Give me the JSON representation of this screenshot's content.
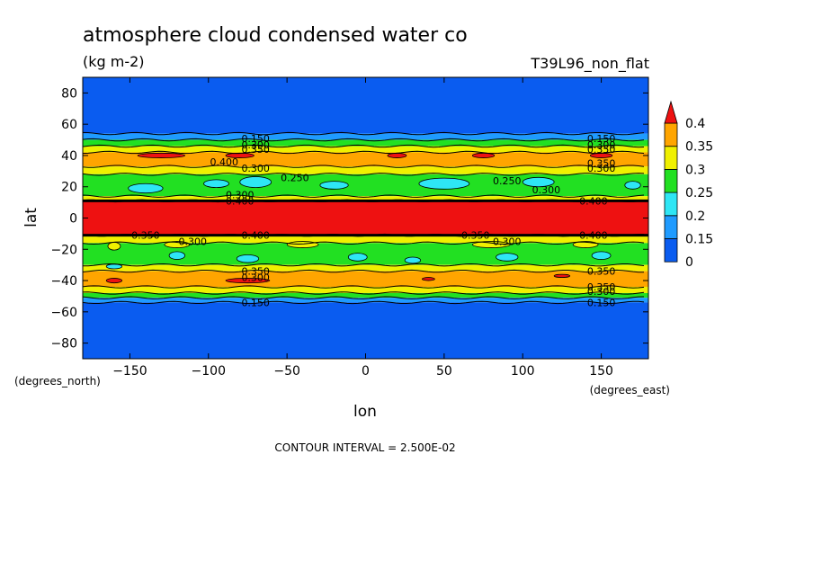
{
  "chart_data": {
    "type": "heatmap",
    "title": "atmosphere cloud condensed water co",
    "units": "(kg m-2)",
    "run_label": "T39L96_non_flat",
    "xlabel": "lon",
    "ylabel": "lat",
    "x_units": "(degrees_east)",
    "y_units": "(degrees_north)",
    "xlim": [
      -180,
      180
    ],
    "ylim": [
      -90,
      90
    ],
    "x_ticks": [
      -150,
      -100,
      -50,
      0,
      50,
      100,
      150
    ],
    "y_ticks": [
      80,
      60,
      40,
      20,
      0,
      -20,
      -40,
      -60,
      -80
    ],
    "footer": "CONTOUR INTERVAL = 2.500E-02",
    "colorbar": {
      "levels": [
        0,
        0.15,
        0.2,
        0.25,
        0.3,
        0.35,
        0.4
      ],
      "labels": [
        "0",
        "0.15",
        "0.2",
        "0.25",
        "0.3",
        "0.35",
        "0.4"
      ],
      "colors": [
        "#0a5cf0",
        "#1f9bff",
        "#2ee6f5",
        "#22e022",
        "#f0f000",
        "#ffa500",
        "#ee1111"
      ]
    },
    "bands": [
      {
        "lat": [
          54,
          90
        ],
        "value_class": 0
      },
      {
        "lat": [
          50,
          54
        ],
        "value_class": 1
      },
      {
        "lat": [
          46,
          50
        ],
        "value_class": 3
      },
      {
        "lat": [
          42,
          46
        ],
        "value_class": 4
      },
      {
        "lat": [
          33,
          42
        ],
        "value_class": 5
      },
      {
        "lat": [
          28,
          33
        ],
        "value_class": 4
      },
      {
        "lat": [
          14,
          28
        ],
        "value_class": 3
      },
      {
        "lat": [
          11,
          14
        ],
        "value_class": 4
      },
      {
        "lat": [
          -11,
          11
        ],
        "value_class": 6
      },
      {
        "lat": [
          -16,
          -11
        ],
        "value_class": 4
      },
      {
        "lat": [
          -30,
          -16
        ],
        "value_class": 3
      },
      {
        "lat": [
          -34,
          -30
        ],
        "value_class": 4
      },
      {
        "lat": [
          -44,
          -34
        ],
        "value_class": 5
      },
      {
        "lat": [
          -48,
          -44
        ],
        "value_class": 4
      },
      {
        "lat": [
          -51,
          -48
        ],
        "value_class": 3
      },
      {
        "lat": [
          -54,
          -51
        ],
        "value_class": 1
      },
      {
        "lat": [
          -90,
          -54
        ],
        "value_class": 0
      }
    ],
    "patches": [
      {
        "lon": -140,
        "lat": 19,
        "w": 22,
        "h": 6,
        "value_class": 2
      },
      {
        "lon": -95,
        "lat": 22,
        "w": 16,
        "h": 5,
        "value_class": 2
      },
      {
        "lon": -70,
        "lat": 23,
        "w": 20,
        "h": 7,
        "value_class": 2
      },
      {
        "lon": -20,
        "lat": 21,
        "w": 18,
        "h": 5,
        "value_class": 2
      },
      {
        "lon": 50,
        "lat": 22,
        "w": 32,
        "h": 7,
        "value_class": 2
      },
      {
        "lon": 110,
        "lat": 23,
        "w": 20,
        "h": 6,
        "value_class": 2
      },
      {
        "lon": 170,
        "lat": 21,
        "w": 10,
        "h": 5,
        "value_class": 2
      },
      {
        "lon": -130,
        "lat": 40,
        "w": 30,
        "h": 3,
        "value_class": 6
      },
      {
        "lon": -80,
        "lat": 40,
        "w": 18,
        "h": 3,
        "value_class": 6
      },
      {
        "lon": 20,
        "lat": 40,
        "w": 12,
        "h": 3,
        "value_class": 6
      },
      {
        "lon": 75,
        "lat": 40,
        "w": 14,
        "h": 3,
        "value_class": 6
      },
      {
        "lon": 150,
        "lat": 40,
        "w": 14,
        "h": 3,
        "value_class": 6
      },
      {
        "lon": -160,
        "lat": -18,
        "w": 8,
        "h": 5,
        "value_class": 4
      },
      {
        "lon": -120,
        "lat": -17,
        "w": 16,
        "h": 4,
        "value_class": 4
      },
      {
        "lon": -40,
        "lat": -17,
        "w": 20,
        "h": 4,
        "value_class": 4
      },
      {
        "lon": 80,
        "lat": -17,
        "w": 24,
        "h": 4,
        "value_class": 4
      },
      {
        "lon": 140,
        "lat": -17,
        "w": 16,
        "h": 4,
        "value_class": 4
      },
      {
        "lon": -120,
        "lat": -24,
        "w": 10,
        "h": 5,
        "value_class": 2
      },
      {
        "lon": -75,
        "lat": -26,
        "w": 14,
        "h": 5,
        "value_class": 2
      },
      {
        "lon": -5,
        "lat": -25,
        "w": 12,
        "h": 5,
        "value_class": 2
      },
      {
        "lon": 30,
        "lat": -27,
        "w": 10,
        "h": 4,
        "value_class": 2
      },
      {
        "lon": 90,
        "lat": -25,
        "w": 14,
        "h": 5,
        "value_class": 2
      },
      {
        "lon": 150,
        "lat": -24,
        "w": 12,
        "h": 5,
        "value_class": 2
      },
      {
        "lon": -160,
        "lat": -31,
        "w": 10,
        "h": 3,
        "value_class": 2
      },
      {
        "lon": -160,
        "lat": -40,
        "w": 10,
        "h": 3,
        "value_class": 6
      },
      {
        "lon": -75,
        "lat": -40,
        "w": 28,
        "h": 3,
        "value_class": 6
      },
      {
        "lon": 40,
        "lat": -39,
        "w": 8,
        "h": 2,
        "value_class": 6
      },
      {
        "lon": 125,
        "lat": -37,
        "w": 10,
        "h": 2,
        "value_class": 6
      }
    ],
    "contour_labels": [
      {
        "text": "0.150",
        "lon": -70,
        "lat": 51
      },
      {
        "text": "0.300",
        "lon": -70,
        "lat": 47
      },
      {
        "text": "0.350",
        "lon": -70,
        "lat": 44
      },
      {
        "text": "0.150",
        "lon": 150,
        "lat": 51
      },
      {
        "text": "0.300",
        "lon": 150,
        "lat": 47
      },
      {
        "text": "0.350",
        "lon": 150,
        "lat": 44
      },
      {
        "text": "0.400",
        "lon": -90,
        "lat": 36
      },
      {
        "text": "0.300",
        "lon": -70,
        "lat": 32
      },
      {
        "text": "0.250",
        "lon": -45,
        "lat": 26
      },
      {
        "text": "0.350",
        "lon": 150,
        "lat": 35
      },
      {
        "text": "0.300",
        "lon": 150,
        "lat": 32
      },
      {
        "text": "0.250",
        "lon": 90,
        "lat": 24
      },
      {
        "text": "0.300",
        "lon": 115,
        "lat": 18
      },
      {
        "text": "0.300",
        "lon": -80,
        "lat": 15
      },
      {
        "text": "0.400",
        "lon": -80,
        "lat": 11
      },
      {
        "text": "0.400",
        "lon": 145,
        "lat": 11
      },
      {
        "text": "0.350",
        "lon": -140,
        "lat": -11
      },
      {
        "text": "0.300",
        "lon": -110,
        "lat": -15
      },
      {
        "text": "0.400",
        "lon": -70,
        "lat": -11
      },
      {
        "text": "0.350",
        "lon": 70,
        "lat": -11
      },
      {
        "text": "0.300",
        "lon": 90,
        "lat": -15
      },
      {
        "text": "0.400",
        "lon": 145,
        "lat": -11
      },
      {
        "text": "0.350",
        "lon": -70,
        "lat": -34
      },
      {
        "text": "0.300",
        "lon": -70,
        "lat": -38
      },
      {
        "text": "0.350",
        "lon": 150,
        "lat": -34
      },
      {
        "text": "0.350",
        "lon": 150,
        "lat": -44
      },
      {
        "text": "0.300",
        "lon": 150,
        "lat": -47
      },
      {
        "text": "0.150",
        "lon": -70,
        "lat": -54
      },
      {
        "text": "0.150",
        "lon": 150,
        "lat": -54
      }
    ]
  }
}
